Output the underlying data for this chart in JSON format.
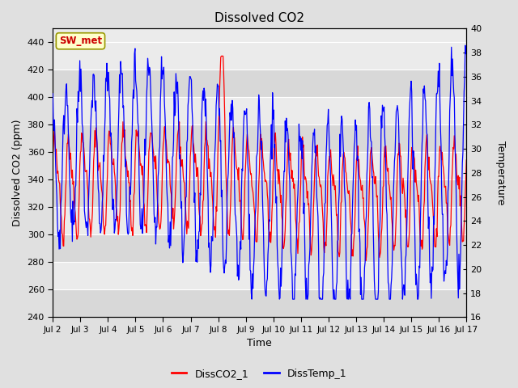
{
  "title": "Dissolved CO2",
  "xlabel": "Time",
  "ylabel_left": "Dissolved CO2 (ppm)",
  "ylabel_right": "Temperature",
  "annotation": "SW_met",
  "legend": [
    "DissCO2_1",
    "DissTemp_1"
  ],
  "line_colors": [
    "red",
    "blue"
  ],
  "ylim_left": [
    240,
    450
  ],
  "ylim_right": [
    16,
    40
  ],
  "yticks_left": [
    240,
    260,
    280,
    300,
    320,
    340,
    360,
    380,
    400,
    420,
    440
  ],
  "yticks_right": [
    16,
    18,
    20,
    22,
    24,
    26,
    28,
    30,
    32,
    34,
    36,
    38,
    40
  ],
  "xtick_labels": [
    "Jul 2",
    "Jul 3",
    "Jul 4",
    "Jul 5",
    "Jul 6",
    "Jul 7",
    "Jul 8",
    "Jul 9",
    "Jul 10",
    "Jul 11",
    "Jul 12",
    "Jul 13",
    "Jul 14",
    "Jul 15",
    "Jul 16",
    "Jul 17"
  ],
  "fig_bg": "#e0e0e0",
  "band_light": "#ebebeb",
  "band_dark": "#d8d8d8",
  "grid_color": "#ffffff",
  "n_points": 720,
  "annotation_bg": "#ffffcc",
  "annotation_fg": "#cc0000",
  "annotation_border": "#999900"
}
